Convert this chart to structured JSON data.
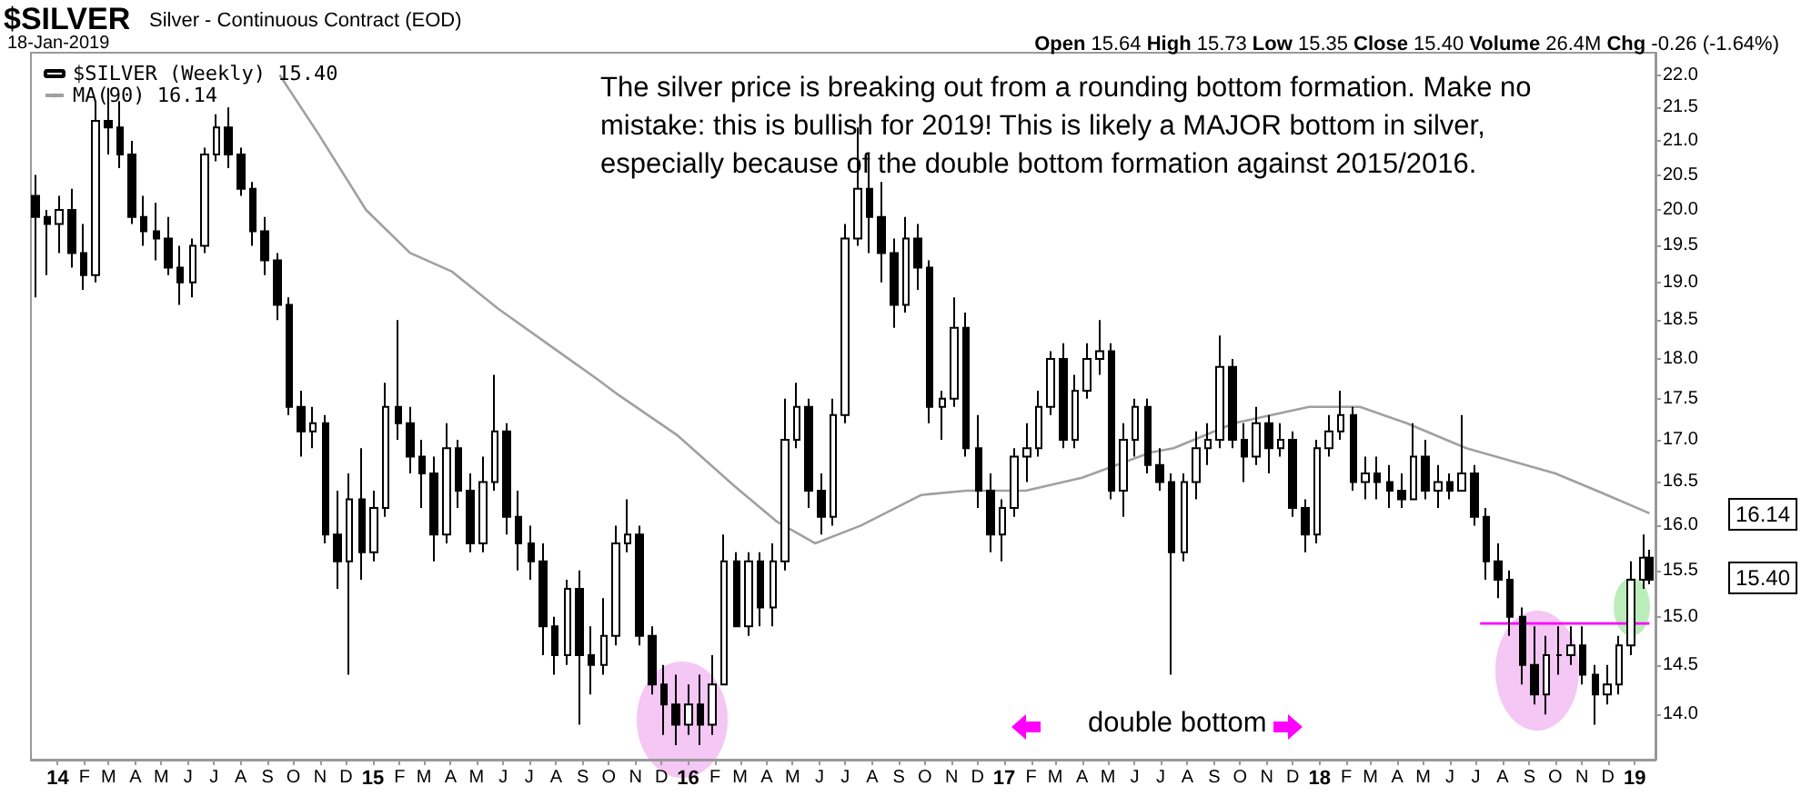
{
  "chart_data": {
    "type": "candlestick",
    "title": "$SILVER",
    "subtitle": "Silver - Continuous Contract (EOD)",
    "annotations": [
      "18-Jan-2019",
      "Open 15.64 High 15.73 Low 15.35 Close 15.40 Volume 26.4M Chg -0.26 (-1.64%)",
      "The silver price is breaking out from a rounding bottom formation. Make no\nmistake: this is bullish for 2019! This is likely a MAJOR bottom in silver,\nespecially because of the double bottom formation against 2015/2016.",
      "double bottom",
      "16.14",
      "15.40"
    ],
    "log": "y",
    "legend": "top left",
    "grid": false,
    "ylim": [
      13.56,
      22.35
    ],
    "yticks": [
      {
        "value": 14,
        "label": "14.0"
      },
      {
        "value": 14.5,
        "label": "14.5"
      },
      {
        "value": 15,
        "label": "15.0"
      },
      {
        "value": 15.5,
        "label": "15.5"
      },
      {
        "value": 16,
        "label": "16.0"
      },
      {
        "value": 16.5,
        "label": "16.5"
      },
      {
        "value": 17,
        "label": "17.0"
      },
      {
        "value": 17.5,
        "label": "17.5"
      },
      {
        "value": 18,
        "label": "18.0"
      },
      {
        "value": 18.5,
        "label": "18.5"
      },
      {
        "value": 19,
        "label": "19.0"
      },
      {
        "value": 19.5,
        "label": "19.5"
      },
      {
        "value": 20,
        "label": "20.0"
      },
      {
        "value": 20.5,
        "label": "20.5"
      },
      {
        "value": 21,
        "label": "21.0"
      },
      {
        "value": 21.5,
        "label": "21.5"
      },
      {
        "value": 22,
        "label": "22.0"
      }
    ],
    "xlim": [
      "2013-12-01",
      "2019-01-25"
    ],
    "xticks": [
      {
        "value": "2014-01",
        "label": "14"
      },
      {
        "value": "2014-02",
        "label": "F"
      },
      {
        "value": "2014-03",
        "label": "M"
      },
      {
        "value": "2014-04",
        "label": "A"
      },
      {
        "value": "2014-05",
        "label": "M"
      },
      {
        "value": "2014-06",
        "label": "J"
      },
      {
        "value": "2014-07",
        "label": "J"
      },
      {
        "value": "2014-08",
        "label": "A"
      },
      {
        "value": "2014-09",
        "label": "S"
      },
      {
        "value": "2014-10",
        "label": "O"
      },
      {
        "value": "2014-11",
        "label": "N"
      },
      {
        "value": "2014-12",
        "label": "D"
      },
      {
        "value": "2015-01",
        "label": "15"
      },
      {
        "value": "2015-02",
        "label": "F"
      },
      {
        "value": "2015-03",
        "label": "M"
      },
      {
        "value": "2015-04",
        "label": "A"
      },
      {
        "value": "2015-05",
        "label": "M"
      },
      {
        "value": "2015-06",
        "label": "J"
      },
      {
        "value": "2015-07",
        "label": "J"
      },
      {
        "value": "2015-08",
        "label": "A"
      },
      {
        "value": "2015-09",
        "label": "S"
      },
      {
        "value": "2015-10",
        "label": "O"
      },
      {
        "value": "2015-11",
        "label": "N"
      },
      {
        "value": "2015-12",
        "label": "D"
      },
      {
        "value": "2016-01",
        "label": "16"
      },
      {
        "value": "2016-02",
        "label": "F"
      },
      {
        "value": "2016-03",
        "label": "M"
      },
      {
        "value": "2016-04",
        "label": "A"
      },
      {
        "value": "2016-05",
        "label": "M"
      },
      {
        "value": "2016-06",
        "label": "J"
      },
      {
        "value": "2016-07",
        "label": "J"
      },
      {
        "value": "2016-08",
        "label": "A"
      },
      {
        "value": "2016-09",
        "label": "S"
      },
      {
        "value": "2016-10",
        "label": "O"
      },
      {
        "value": "2016-11",
        "label": "N"
      },
      {
        "value": "2016-12",
        "label": "D"
      },
      {
        "value": "2017-01",
        "label": "17"
      },
      {
        "value": "2017-02",
        "label": "F"
      },
      {
        "value": "2017-03",
        "label": "M"
      },
      {
        "value": "2017-04",
        "label": "A"
      },
      {
        "value": "2017-05",
        "label": "M"
      },
      {
        "value": "2017-06",
        "label": "J"
      },
      {
        "value": "2017-07",
        "label": "J"
      },
      {
        "value": "2017-08",
        "label": "A"
      },
      {
        "value": "2017-09",
        "label": "S"
      },
      {
        "value": "2017-10",
        "label": "O"
      },
      {
        "value": "2017-11",
        "label": "N"
      },
      {
        "value": "2017-12",
        "label": "D"
      },
      {
        "value": "2018-01",
        "label": "18"
      },
      {
        "value": "2018-02",
        "label": "F"
      },
      {
        "value": "2018-03",
        "label": "M"
      },
      {
        "value": "2018-04",
        "label": "A"
      },
      {
        "value": "2018-05",
        "label": "M"
      },
      {
        "value": "2018-06",
        "label": "J"
      },
      {
        "value": "2018-07",
        "label": "J"
      },
      {
        "value": "2018-08",
        "label": "A"
      },
      {
        "value": "2018-09",
        "label": "S"
      },
      {
        "value": "2018-10",
        "label": "O"
      },
      {
        "value": "2018-11",
        "label": "N"
      },
      {
        "value": "2018-12",
        "label": "D"
      },
      {
        "value": "2019-01",
        "label": "19"
      }
    ],
    "series": [
      {
        "name": "$SILVER (Weekly) 15.40",
        "type": "candlestick",
        "color": "#000000",
        "x": [
          "2013-12-06",
          "2013-12-20",
          "2014-01-03",
          "2014-01-17",
          "2014-01-31",
          "2014-02-14",
          "2014-02-28",
          "2014-03-14",
          "2014-03-28",
          "2014-04-11",
          "2014-04-25",
          "2014-05-09",
          "2014-05-23",
          "2014-06-06",
          "2014-06-20",
          "2014-07-04",
          "2014-07-18",
          "2014-08-01",
          "2014-08-15",
          "2014-08-29",
          "2014-09-12",
          "2014-09-26",
          "2014-10-10",
          "2014-10-24",
          "2014-11-07",
          "2014-11-21",
          "2014-12-05",
          "2014-12-19",
          "2015-01-02",
          "2015-01-16",
          "2015-01-30",
          "2015-02-13",
          "2015-02-27",
          "2015-03-13",
          "2015-03-27",
          "2015-04-10",
          "2015-04-24",
          "2015-05-08",
          "2015-05-22",
          "2015-06-05",
          "2015-06-19",
          "2015-07-03",
          "2015-07-17",
          "2015-07-31",
          "2015-08-14",
          "2015-08-28",
          "2015-09-11",
          "2015-09-25",
          "2015-10-09",
          "2015-10-23",
          "2015-11-06",
          "2015-11-20",
          "2015-12-04",
          "2015-12-18",
          "2016-01-01",
          "2016-01-15",
          "2016-01-29",
          "2016-02-12",
          "2016-02-26",
          "2016-03-11",
          "2016-03-25",
          "2016-04-08",
          "2016-04-22",
          "2016-05-06",
          "2016-05-20",
          "2016-06-03",
          "2016-06-17",
          "2016-07-01",
          "2016-07-15",
          "2016-07-29",
          "2016-08-12",
          "2016-08-26",
          "2016-09-09",
          "2016-09-23",
          "2016-10-07",
          "2016-10-21",
          "2016-11-04",
          "2016-11-18",
          "2016-12-02",
          "2016-12-16",
          "2016-12-30",
          "2017-01-13",
          "2017-01-27",
          "2017-02-10",
          "2017-02-24",
          "2017-03-10",
          "2017-03-24",
          "2017-04-07",
          "2017-04-21",
          "2017-05-05",
          "2017-05-19",
          "2017-06-02",
          "2017-06-16",
          "2017-06-30",
          "2017-07-14",
          "2017-07-28",
          "2017-08-11",
          "2017-08-25",
          "2017-09-08",
          "2017-09-22",
          "2017-10-06",
          "2017-10-20",
          "2017-11-03",
          "2017-11-17",
          "2017-12-01",
          "2017-12-15",
          "2017-12-29",
          "2018-01-12",
          "2018-01-26",
          "2018-02-09",
          "2018-02-23",
          "2018-03-09",
          "2018-03-23",
          "2018-04-06",
          "2018-04-20",
          "2018-05-04",
          "2018-05-18",
          "2018-06-01",
          "2018-06-15",
          "2018-06-29",
          "2018-07-13",
          "2018-07-27",
          "2018-08-10",
          "2018-08-24",
          "2018-09-07",
          "2018-09-21",
          "2018-10-05",
          "2018-10-19",
          "2018-11-02",
          "2018-11-16",
          "2018-11-30",
          "2018-12-14",
          "2018-12-28",
          "2019-01-11",
          "2019-01-18"
        ],
        "ohlc": [
          [
            20.2,
            20.5,
            18.8,
            19.9
          ],
          [
            19.9,
            20.0,
            19.1,
            19.8
          ],
          [
            19.8,
            20.2,
            19.4,
            20.0
          ],
          [
            20.0,
            20.3,
            19.2,
            19.4
          ],
          [
            19.4,
            19.8,
            18.9,
            19.1
          ],
          [
            19.1,
            21.6,
            19.0,
            21.3
          ],
          [
            21.3,
            21.8,
            20.8,
            21.2
          ],
          [
            21.2,
            21.6,
            20.6,
            20.8
          ],
          [
            20.8,
            21.0,
            19.8,
            19.9
          ],
          [
            19.9,
            20.2,
            19.5,
            19.7
          ],
          [
            19.7,
            20.1,
            19.3,
            19.6
          ],
          [
            19.6,
            19.9,
            19.1,
            19.2
          ],
          [
            19.2,
            19.5,
            18.7,
            19.0
          ],
          [
            19.0,
            19.6,
            18.8,
            19.5
          ],
          [
            19.5,
            20.9,
            19.4,
            20.8
          ],
          [
            20.8,
            21.4,
            20.7,
            21.2
          ],
          [
            21.2,
            21.5,
            20.6,
            20.8
          ],
          [
            20.8,
            20.9,
            20.2,
            20.3
          ],
          [
            20.3,
            20.4,
            19.5,
            19.7
          ],
          [
            19.7,
            19.9,
            19.1,
            19.3
          ],
          [
            19.3,
            19.4,
            18.5,
            18.7
          ],
          [
            18.7,
            18.8,
            17.3,
            17.4
          ],
          [
            17.4,
            17.6,
            16.8,
            17.1
          ],
          [
            17.1,
            17.4,
            16.9,
            17.2
          ],
          [
            17.2,
            17.3,
            15.8,
            15.9
          ],
          [
            15.9,
            16.4,
            15.3,
            15.6
          ],
          [
            15.6,
            16.6,
            14.4,
            16.3
          ],
          [
            16.3,
            16.9,
            15.4,
            15.7
          ],
          [
            15.7,
            16.4,
            15.6,
            16.2
          ],
          [
            16.2,
            17.7,
            16.1,
            17.4
          ],
          [
            17.4,
            18.5,
            17.0,
            17.2
          ],
          [
            17.2,
            17.4,
            16.6,
            16.8
          ],
          [
            16.8,
            17.0,
            16.2,
            16.6
          ],
          [
            16.6,
            16.8,
            15.6,
            15.9
          ],
          [
            15.9,
            17.2,
            15.8,
            16.9
          ],
          [
            16.9,
            17.0,
            16.2,
            16.4
          ],
          [
            16.4,
            16.6,
            15.7,
            15.8
          ],
          [
            15.8,
            16.8,
            15.7,
            16.5
          ],
          [
            16.5,
            17.8,
            16.4,
            17.1
          ],
          [
            17.1,
            17.2,
            15.9,
            16.1
          ],
          [
            16.1,
            16.4,
            15.5,
            15.8
          ],
          [
            15.8,
            16.0,
            15.4,
            15.6
          ],
          [
            15.6,
            15.8,
            14.6,
            14.9
          ],
          [
            14.9,
            15.0,
            14.4,
            14.6
          ],
          [
            14.6,
            15.4,
            14.5,
            15.3
          ],
          [
            15.3,
            15.5,
            13.9,
            14.6
          ],
          [
            14.6,
            14.9,
            14.2,
            14.5
          ],
          [
            14.5,
            15.2,
            14.4,
            14.8
          ],
          [
            14.8,
            16.0,
            14.7,
            15.8
          ],
          [
            15.8,
            16.3,
            15.7,
            15.9
          ],
          [
            15.9,
            16.0,
            14.7,
            14.8
          ],
          [
            14.8,
            14.9,
            14.2,
            14.3
          ],
          [
            14.3,
            14.5,
            13.8,
            14.1
          ],
          [
            14.1,
            14.4,
            13.7,
            13.9
          ],
          [
            13.9,
            14.3,
            13.8,
            14.1
          ],
          [
            14.1,
            14.4,
            13.7,
            13.9
          ],
          [
            13.9,
            14.6,
            13.8,
            14.3
          ],
          [
            14.3,
            15.9,
            14.3,
            15.6
          ],
          [
            15.6,
            15.7,
            14.9,
            14.9
          ],
          [
            14.9,
            15.7,
            14.8,
            15.6
          ],
          [
            15.6,
            15.7,
            14.9,
            15.1
          ],
          [
            15.1,
            15.8,
            14.9,
            15.6
          ],
          [
            15.6,
            17.5,
            15.5,
            17.0
          ],
          [
            17.0,
            17.7,
            16.9,
            17.4
          ],
          [
            17.4,
            17.5,
            16.2,
            16.4
          ],
          [
            16.4,
            16.6,
            15.9,
            16.1
          ],
          [
            16.1,
            17.5,
            16.0,
            17.3
          ],
          [
            17.3,
            19.8,
            17.2,
            19.6
          ],
          [
            19.6,
            21.2,
            19.5,
            20.3
          ],
          [
            20.3,
            20.8,
            19.4,
            19.9
          ],
          [
            19.9,
            20.4,
            19.0,
            19.4
          ],
          [
            19.4,
            19.6,
            18.4,
            18.7
          ],
          [
            18.7,
            19.9,
            18.6,
            19.6
          ],
          [
            19.6,
            19.8,
            18.9,
            19.2
          ],
          [
            19.2,
            19.3,
            17.2,
            17.4
          ],
          [
            17.4,
            17.6,
            17.0,
            17.5
          ],
          [
            17.5,
            18.8,
            17.4,
            18.4
          ],
          [
            18.4,
            18.6,
            16.8,
            16.9
          ],
          [
            16.9,
            17.3,
            16.2,
            16.4
          ],
          [
            16.4,
            16.6,
            15.7,
            15.9
          ],
          [
            15.9,
            16.3,
            15.6,
            16.2
          ],
          [
            16.2,
            16.9,
            16.1,
            16.8
          ],
          [
            16.8,
            17.2,
            16.5,
            16.9
          ],
          [
            16.9,
            17.6,
            16.8,
            17.4
          ],
          [
            17.4,
            18.1,
            17.3,
            18.0
          ],
          [
            18.0,
            18.2,
            16.9,
            17.0
          ],
          [
            17.0,
            17.8,
            16.9,
            17.6
          ],
          [
            17.6,
            18.2,
            17.5,
            18.0
          ],
          [
            18.0,
            18.5,
            17.8,
            18.1
          ],
          [
            18.1,
            18.2,
            16.3,
            16.4
          ],
          [
            16.4,
            17.2,
            16.1,
            17.0
          ],
          [
            17.0,
            17.5,
            16.8,
            17.4
          ],
          [
            17.4,
            17.5,
            16.6,
            16.7
          ],
          [
            16.7,
            16.9,
            16.4,
            16.5
          ],
          [
            16.5,
            16.6,
            14.4,
            15.7
          ],
          [
            15.7,
            16.6,
            15.6,
            16.5
          ],
          [
            16.5,
            17.1,
            16.3,
            16.9
          ],
          [
            16.9,
            17.2,
            16.7,
            17.0
          ],
          [
            17.0,
            18.3,
            16.9,
            17.9
          ],
          [
            17.9,
            18.0,
            16.9,
            17.0
          ],
          [
            17.0,
            17.2,
            16.5,
            16.8
          ],
          [
            16.8,
            17.4,
            16.7,
            17.2
          ],
          [
            17.2,
            17.3,
            16.6,
            16.9
          ],
          [
            16.9,
            17.2,
            16.8,
            17.0
          ],
          [
            17.0,
            17.1,
            16.1,
            16.2
          ],
          [
            16.2,
            16.3,
            15.7,
            15.9
          ],
          [
            15.9,
            17.0,
            15.8,
            16.9
          ],
          [
            16.9,
            17.3,
            16.8,
            17.1
          ],
          [
            17.1,
            17.6,
            17.0,
            17.3
          ],
          [
            17.3,
            17.4,
            16.4,
            16.5
          ],
          [
            16.5,
            16.8,
            16.3,
            16.6
          ],
          [
            16.6,
            16.8,
            16.3,
            16.5
          ],
          [
            16.5,
            16.7,
            16.2,
            16.4
          ],
          [
            16.4,
            16.6,
            16.2,
            16.3
          ],
          [
            16.3,
            17.2,
            16.3,
            16.8
          ],
          [
            16.8,
            17.0,
            16.3,
            16.4
          ],
          [
            16.4,
            16.7,
            16.2,
            16.5
          ],
          [
            16.5,
            16.6,
            16.3,
            16.4
          ],
          [
            16.4,
            17.3,
            16.4,
            16.6
          ],
          [
            16.6,
            16.7,
            16.0,
            16.1
          ],
          [
            16.1,
            16.2,
            15.4,
            15.6
          ],
          [
            15.6,
            15.8,
            15.2,
            15.4
          ],
          [
            15.4,
            15.5,
            14.8,
            15.0
          ],
          [
            15.0,
            15.1,
            14.3,
            14.5
          ],
          [
            14.5,
            14.9,
            14.1,
            14.2
          ],
          [
            14.2,
            14.8,
            14.0,
            14.6
          ],
          [
            14.6,
            14.9,
            14.4,
            14.6
          ],
          [
            14.6,
            14.9,
            14.5,
            14.7
          ],
          [
            14.7,
            14.9,
            14.3,
            14.4
          ],
          [
            14.4,
            14.5,
            13.9,
            14.2
          ],
          [
            14.2,
            14.5,
            14.1,
            14.3
          ],
          [
            14.3,
            14.8,
            14.2,
            14.7
          ],
          [
            14.7,
            15.6,
            14.6,
            15.4
          ],
          [
            15.4,
            15.9,
            15.3,
            15.64
          ],
          [
            15.64,
            15.73,
            15.35,
            15.4
          ]
        ]
      },
      {
        "name": "MA(90) 16.14",
        "type": "line",
        "color": "#a0a0a0",
        "x": [
          "2014-09-15",
          "2014-10-30",
          "2014-12-24",
          "2015-02-13",
          "2015-04-02",
          "2015-05-26",
          "2015-08-03",
          "2015-09-17",
          "2015-10-12",
          "2015-12-20",
          "2016-02-24",
          "2016-04-12",
          "2016-05-27",
          "2016-07-19",
          "2016-09-27",
          "2016-11-18",
          "2017-01-26",
          "2017-04-01",
          "2017-06-20",
          "2017-07-16",
          "2017-09-24",
          "2017-12-20",
          "2018-02-17",
          "2018-04-12",
          "2018-06-20",
          "2018-10-01",
          "2018-11-18",
          "2019-01-18"
        ],
        "values": [
          22.0,
          21.1,
          20.0,
          19.4,
          19.15,
          18.65,
          18.1,
          17.75,
          17.55,
          17.05,
          16.45,
          16.05,
          15.8,
          16.0,
          16.35,
          16.4,
          16.4,
          16.55,
          16.85,
          16.9,
          17.2,
          17.4,
          17.4,
          17.2,
          16.9,
          16.6,
          16.4,
          16.14
        ]
      },
      {
        "type": "line",
        "color": "#ff00ff",
        "x": [
          "2018-07-06",
          "2019-01-18"
        ],
        "values": [
          14.93,
          14.93
        ]
      }
    ]
  }
}
